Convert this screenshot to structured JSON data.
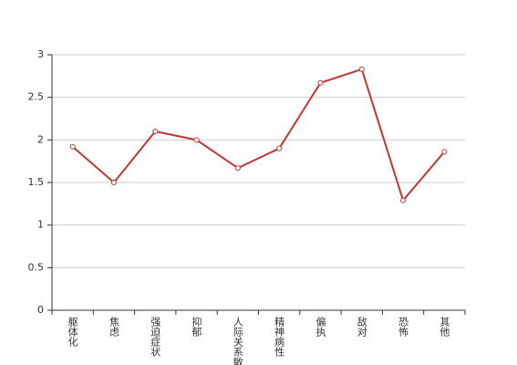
{
  "chart_data": {
    "type": "line",
    "categories": [
      "躯体化",
      "焦虑",
      "强迫症状",
      "抑郁",
      "人际关系敏感",
      "精神病性",
      "偏执",
      "敌对",
      "恐怖",
      "其他"
    ],
    "values": [
      1.92,
      1.5,
      2.1,
      2.0,
      1.67,
      1.9,
      2.67,
      2.83,
      1.29,
      1.86
    ],
    "color": "#c23531",
    "ylim": [
      0,
      3
    ],
    "yticks": [
      0,
      0.5,
      1,
      1.5,
      2,
      2.5,
      3
    ],
    "grid": true
  }
}
